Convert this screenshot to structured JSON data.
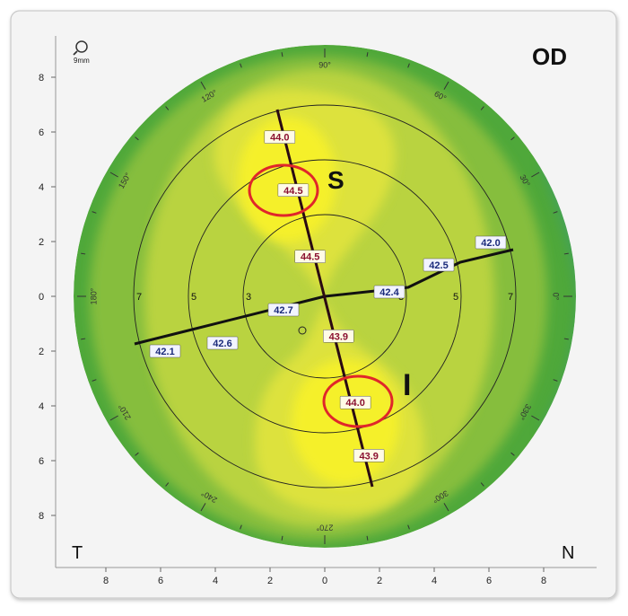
{
  "header": {
    "eye": "OD",
    "scale_label": "9mm",
    "zoom_icon": "magnifier-icon"
  },
  "corners": {
    "temporal": "T",
    "nasal": "N"
  },
  "x_axis_ticks": [
    "8",
    "6",
    "4",
    "2",
    "0",
    "2",
    "4",
    "6",
    "8"
  ],
  "y_axis_ticks": [
    "8",
    "6",
    "4",
    "2",
    "0",
    "2",
    "4",
    "6",
    "8"
  ],
  "degree_labels": [
    {
      "label": "0°",
      "angle": 0
    },
    {
      "label": "30°",
      "angle": 30
    },
    {
      "label": "60°",
      "angle": 60
    },
    {
      "label": "90°",
      "angle": 90
    },
    {
      "label": "120°",
      "angle": 120
    },
    {
      "label": "150°",
      "angle": 150
    },
    {
      "label": "180°",
      "angle": 180
    },
    {
      "label": "210°",
      "angle": 210
    },
    {
      "label": "240°",
      "angle": 240
    },
    {
      "label": "270°",
      "angle": 270
    },
    {
      "label": "300°",
      "angle": 300
    },
    {
      "label": "330°",
      "angle": 330
    }
  ],
  "ring_labels_left": [
    "7",
    "5",
    "3"
  ],
  "ring_labels_right": [
    "3",
    "5",
    "7"
  ],
  "steep_meridian": {
    "axis_deg": 108,
    "readings_superior": [
      {
        "value": "44.0",
        "r": 6,
        "circled": false
      },
      {
        "value": "44.5",
        "r": 4,
        "circled": true
      },
      {
        "value": "44.5",
        "r": 1.5,
        "circled": false
      }
    ],
    "readings_inferior": [
      {
        "value": "43.9",
        "r": 1.5,
        "circled": false
      },
      {
        "value": "44.0",
        "r": 4,
        "circled": true
      },
      {
        "value": "43.9",
        "r": 6,
        "circled": false
      }
    ]
  },
  "flat_meridian": {
    "readings_nasal": [
      {
        "value": "42.4",
        "r": 2.0
      },
      {
        "value": "42.5",
        "r": 4.0
      },
      {
        "value": "42.0",
        "r": 5.8
      }
    ],
    "readings_temporal": [
      {
        "value": "42.7",
        "r": 1.5
      },
      {
        "value": "42.6",
        "r": 4.2
      },
      {
        "value": "42.1",
        "r": 6.2
      }
    ]
  },
  "zone_labels": {
    "superior": "S",
    "inferior": "I"
  },
  "colors": {
    "outer_green": "#4fa83a",
    "mid_green": "#86be3c",
    "light_green": "#b9d33f",
    "yellow_green": "#dde23c",
    "yellow": "#f5f02a",
    "circle_red": "#e0262a",
    "axis_line": "#111111",
    "steep_line": "#2a0a12"
  }
}
